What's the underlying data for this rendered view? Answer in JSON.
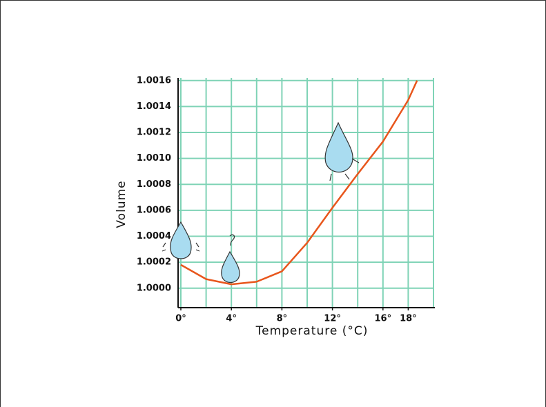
{
  "chart_data": {
    "type": "line",
    "x_label": "Temperature (°C)",
    "y_label": "Volume",
    "xlim": [
      0,
      20
    ],
    "ylim": [
      0.99985,
      1.00162
    ],
    "xticks": [
      {
        "value": 0,
        "label": "0°"
      },
      {
        "value": 4,
        "label": "4°"
      },
      {
        "value": 8,
        "label": "8°"
      },
      {
        "value": 12,
        "label": "12°"
      },
      {
        "value": 16,
        "label": "16°"
      },
      {
        "value": 18,
        "label": "18°"
      }
    ],
    "yticks": [
      {
        "value": 1.0,
        "label": "1.0000"
      },
      1.0002,
      1.0004,
      1.0006,
      1.0008,
      {
        "value": 1.001,
        "label": "1.0010"
      },
      1.0012,
      1.0014,
      1.0016
    ],
    "xgrid": [
      0,
      2,
      4,
      6,
      8,
      10,
      12,
      14,
      16,
      18,
      20
    ],
    "grid": true,
    "grid_color": "#7fd3b6",
    "series": [
      {
        "color": "#e8561c",
        "x": [
          0,
          2,
          4,
          6,
          8,
          10,
          12,
          14,
          16,
          18,
          18.7
        ],
        "values": [
          1.00018,
          1.00007,
          1.00003,
          1.00005,
          1.00013,
          1.00035,
          1.00062,
          1.00088,
          1.00113,
          1.00145,
          1.0016
        ]
      }
    ]
  }
}
